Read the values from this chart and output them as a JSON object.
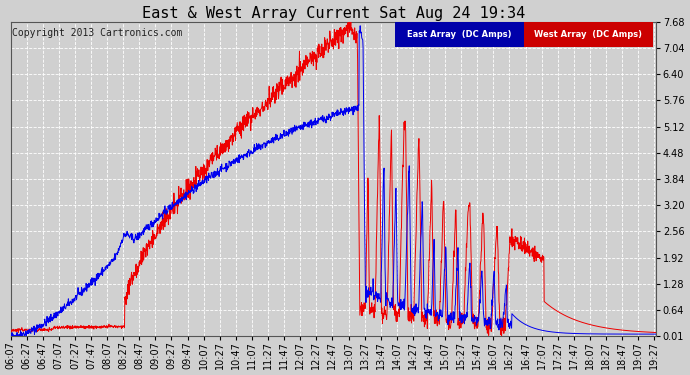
{
  "title": "East & West Array Current Sat Aug 24 19:34",
  "copyright": "Copyright 2013 Cartronics.com",
  "legend_east": "East Array  (DC Amps)",
  "legend_west": "West Array  (DC Amps)",
  "east_color": "#0000ee",
  "west_color": "#ee0000",
  "legend_east_bg": "#0000aa",
  "legend_west_bg": "#cc0000",
  "bg_color": "#d0d0d0",
  "grid_color": "#ffffff",
  "yticks": [
    0.01,
    0.64,
    1.28,
    1.92,
    2.56,
    3.2,
    3.84,
    4.48,
    5.12,
    5.76,
    6.4,
    7.04,
    7.68
  ],
  "ymin": 0.01,
  "ymax": 7.68,
  "title_fontsize": 11,
  "tick_fontsize": 7,
  "copyright_fontsize": 7
}
